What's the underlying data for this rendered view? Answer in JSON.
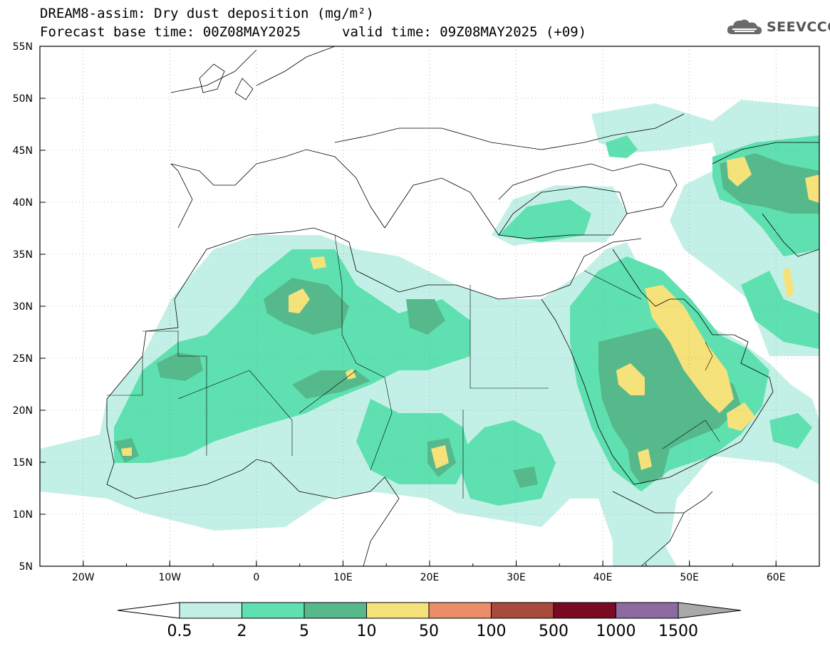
{
  "header": {
    "title_line1": "DREAM8-assim: Dry dust deposition (mg/m²)",
    "title_line2_left": "Forecast base time: 00Z08MAY2025",
    "title_line2_right": "valid time: 09Z08MAY2025 (+09)"
  },
  "logo": {
    "text": "SEEVCCC",
    "icon": "cloud-logo-icon"
  },
  "map": {
    "lat_labels": [
      "55N",
      "50N",
      "45N",
      "40N",
      "35N",
      "30N",
      "25N",
      "20N",
      "15N",
      "10N",
      "5N"
    ],
    "lon_labels": [
      "20W",
      "10W",
      "0",
      "10E",
      "20E",
      "30E",
      "40E",
      "50E",
      "60E"
    ],
    "lon_range": [
      -25,
      65
    ],
    "lat_range": [
      5,
      55
    ]
  },
  "legend": {
    "labels": [
      "0.5",
      "2",
      "5",
      "10",
      "50",
      "100",
      "500",
      "1000",
      "1500"
    ],
    "colors": [
      "#c3f0e6",
      "#5fe0b0",
      "#55b98c",
      "#f5e27a",
      "#eb8d68",
      "#a84b3c",
      "#7a0a24",
      "#8d6ba0",
      "#a9a9a9"
    ]
  }
}
